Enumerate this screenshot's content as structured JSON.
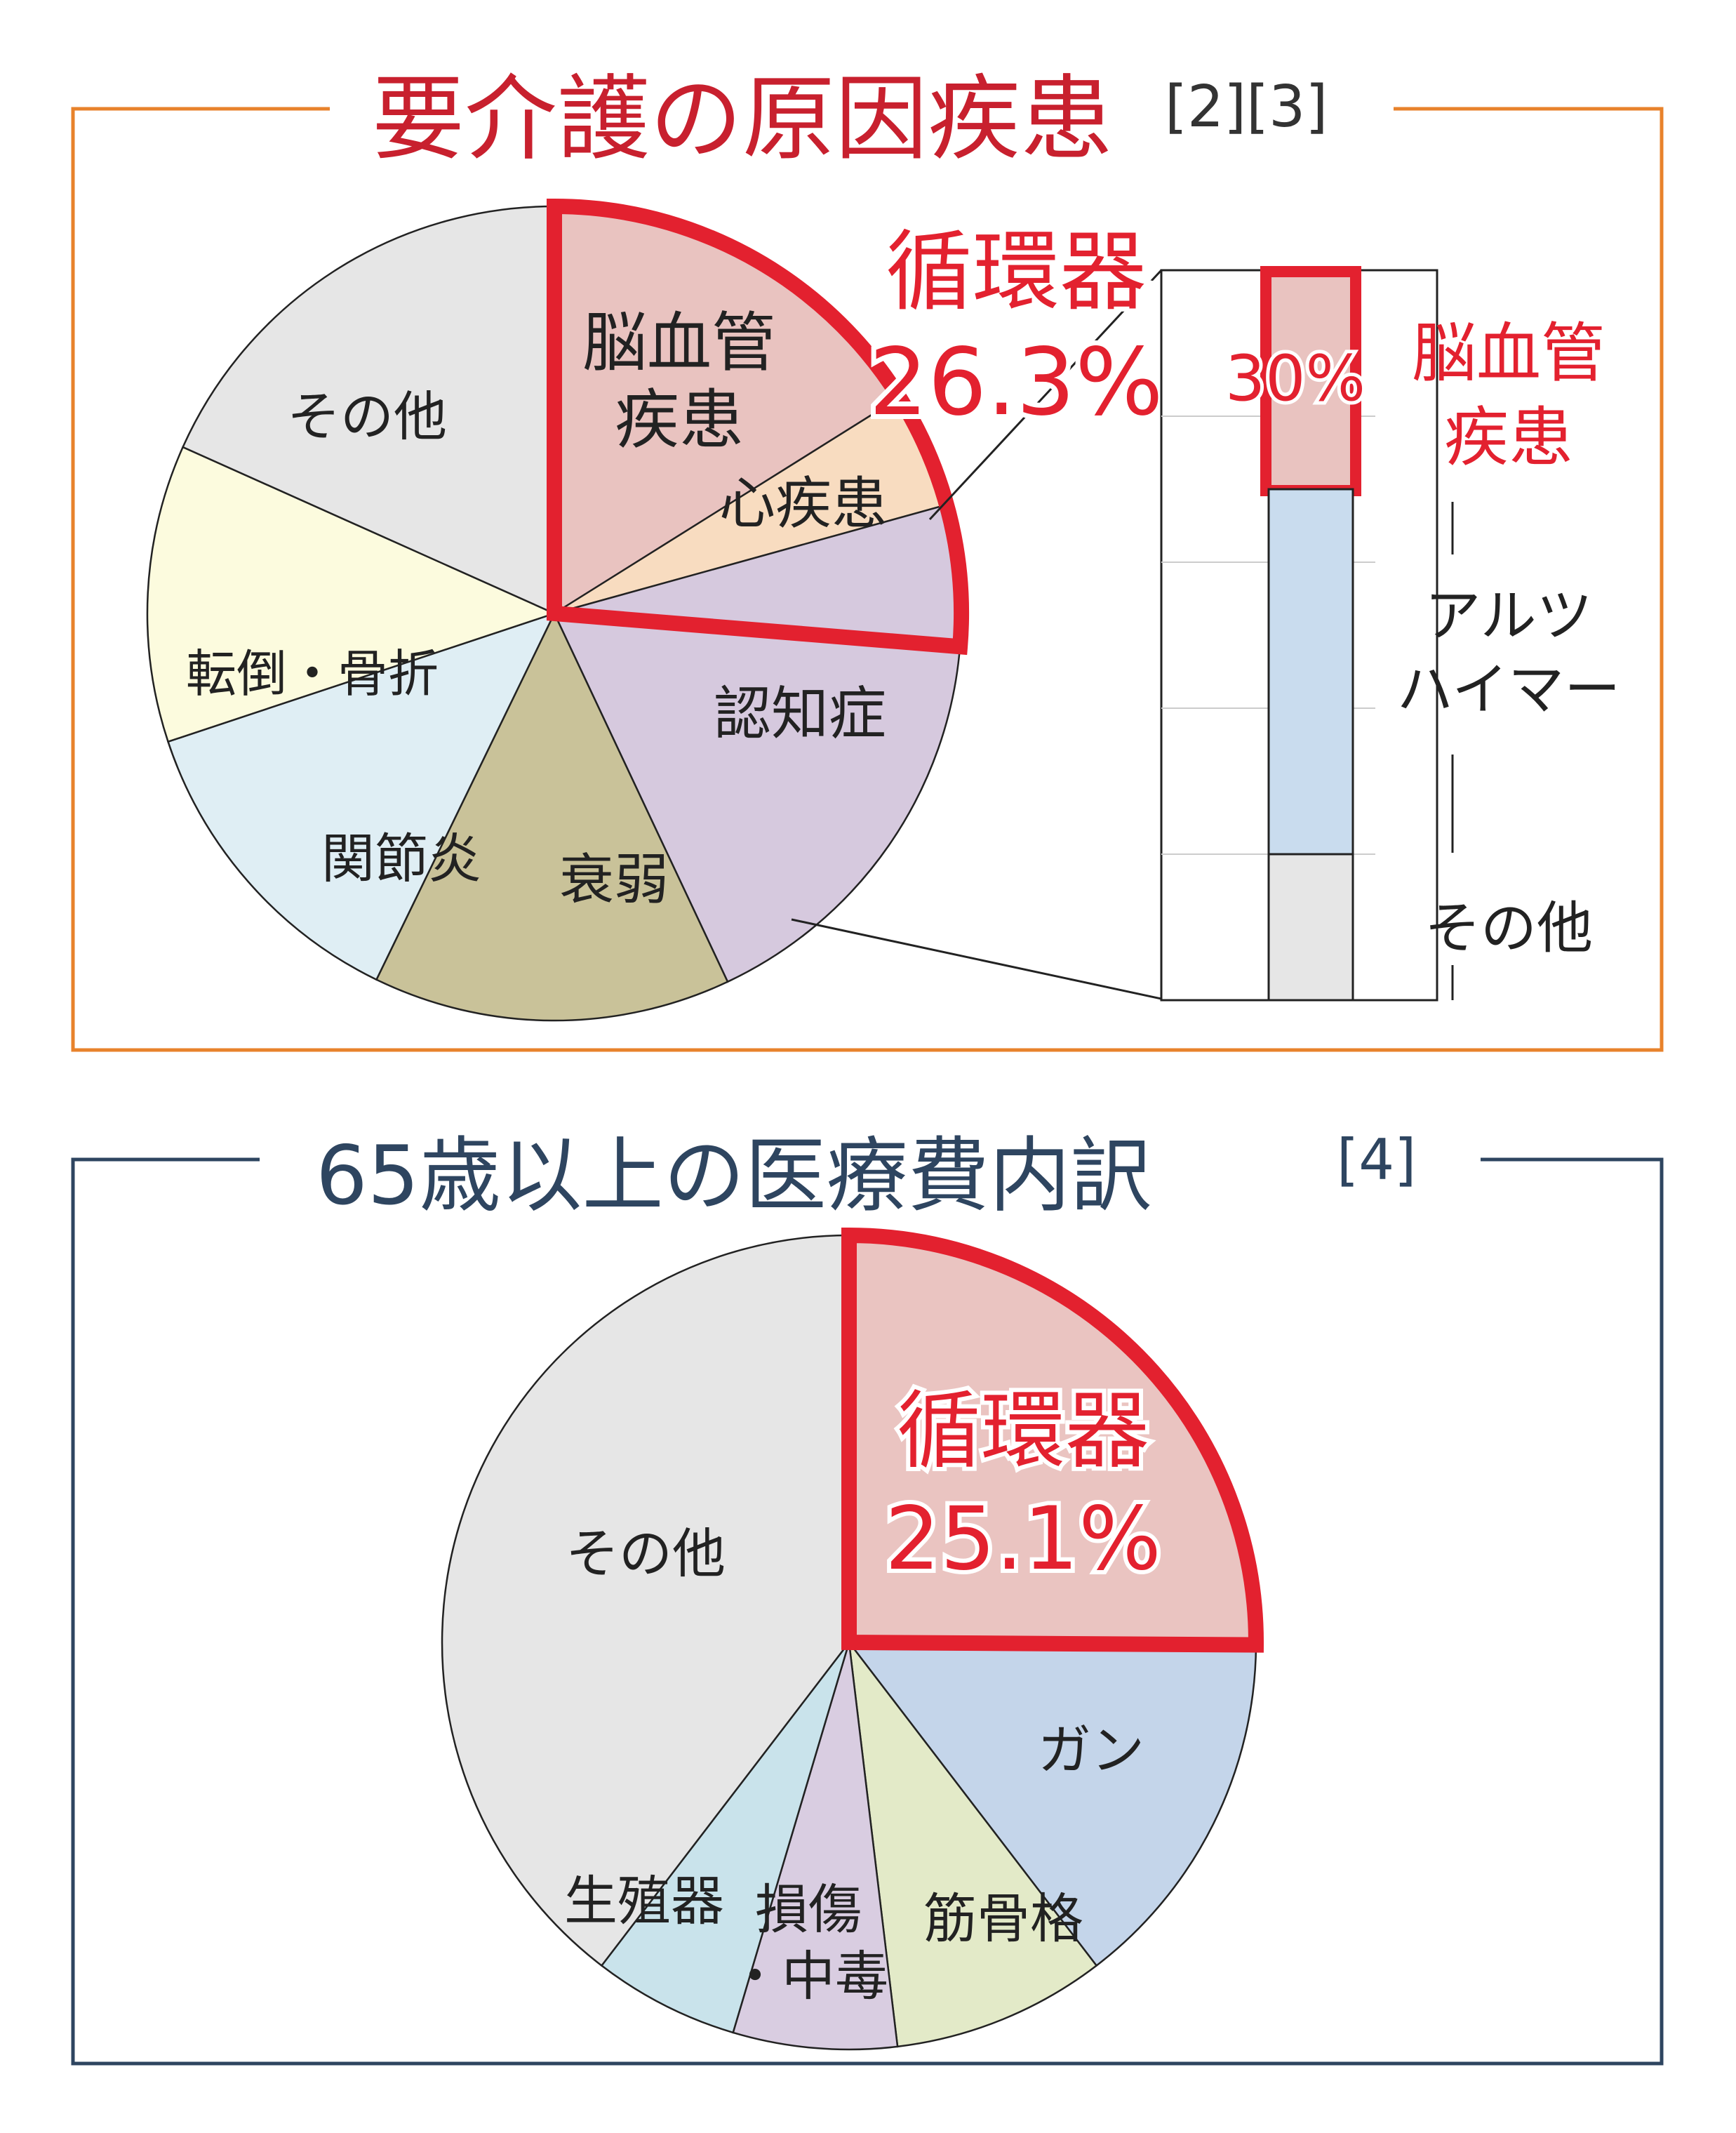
{
  "colors": {
    "red": "#e3212f",
    "orange_frame": "#e8822b",
    "navy_frame": "#2e4560",
    "text_dark": "#222222",
    "navy_text": "#2e4560"
  },
  "panel_top": {
    "title": "要介護の原因疾患",
    "ref": "[2][3]",
    "highlight_label": "循環器",
    "highlight_value": "26.3%",
    "bar": {
      "highlight_value": "30%",
      "highlight_label_line1": "脳血管",
      "highlight_label_line2": "疾患",
      "middle_label_line1": "アルツ",
      "middle_label_line2": "ハイマー",
      "bottom_label": "その他"
    }
  },
  "panel_bottom": {
    "title": "65歳以上の医療費内訳",
    "ref": "[4]",
    "highlight_label": "循環器",
    "highlight_value": "25.1%"
  },
  "chart_data": [
    {
      "type": "pie",
      "title": "要介護の原因疾患",
      "slices": [
        {
          "name": "脳血管疾患",
          "label_lines": [
            "脳血管",
            "疾患"
          ],
          "value": 16.1,
          "color": "#e9c3c0",
          "group": "循環器"
        },
        {
          "name": "心疾患",
          "label_lines": [
            "心疾患"
          ],
          "value": 4.6,
          "color": "#f8dcc0",
          "group": "循環器"
        },
        {
          "name": "",
          "label_lines": [],
          "value": 5.6,
          "color": "#d6c9de",
          "group": "循環器"
        },
        {
          "name": "認知症",
          "label_lines": [
            "認知症"
          ],
          "value": 16.7,
          "color": "#d6c9de"
        },
        {
          "name": "衰弱",
          "label_lines": [
            "衰弱"
          ],
          "value": 14.2,
          "color": "#c9c299"
        },
        {
          "name": "関節炎",
          "label_lines": [
            "関節炎"
          ],
          "value": 12.7,
          "color": "#dfeef4"
        },
        {
          "name": "転倒・骨折",
          "label_lines": [
            "転倒・骨折"
          ],
          "value": 11.8,
          "color": "#fcfbde"
        },
        {
          "name": "その他",
          "label_lines": [
            "その他"
          ],
          "value": 18.3,
          "color": "#e6e6e6"
        }
      ],
      "highlight": {
        "label": "循環器",
        "value": 26.3,
        "unit": "%"
      }
    },
    {
      "type": "bar",
      "stacked": true,
      "categories": [
        "脳血管疾患",
        "アルツハイマー",
        "その他"
      ],
      "values": [
        30,
        50,
        20
      ],
      "colors": [
        "#e9c3c0",
        "#c9dcee",
        "#e6e6e6"
      ],
      "ylim": [
        0,
        100
      ]
    },
    {
      "type": "pie",
      "title": "65歳以上の医療費内訳",
      "slices": [
        {
          "name": "循環器",
          "label_lines": [
            "循環器",
            "25.1%"
          ],
          "value": 25.1,
          "color": "#eac4c1"
        },
        {
          "name": "ガン",
          "label_lines": [
            "ガン"
          ],
          "value": 14.5,
          "color": "#c4d5ea"
        },
        {
          "name": "筋骨格",
          "label_lines": [
            "筋骨格"
          ],
          "value": 8.5,
          "color": "#e3eac8"
        },
        {
          "name": "損傷・中毒",
          "label_lines": [
            "損傷",
            "・中毒"
          ],
          "value": 6.5,
          "color": "#d9cde1"
        },
        {
          "name": "生殖器",
          "label_lines": [
            "生殖器"
          ],
          "value": 5.8,
          "color": "#c9e3eb"
        },
        {
          "name": "その他",
          "label_lines": [
            "その他"
          ],
          "value": 39.6,
          "color": "#e6e6e6"
        }
      ],
      "highlight": {
        "label": "循環器",
        "value": 25.1,
        "unit": "%"
      }
    }
  ]
}
